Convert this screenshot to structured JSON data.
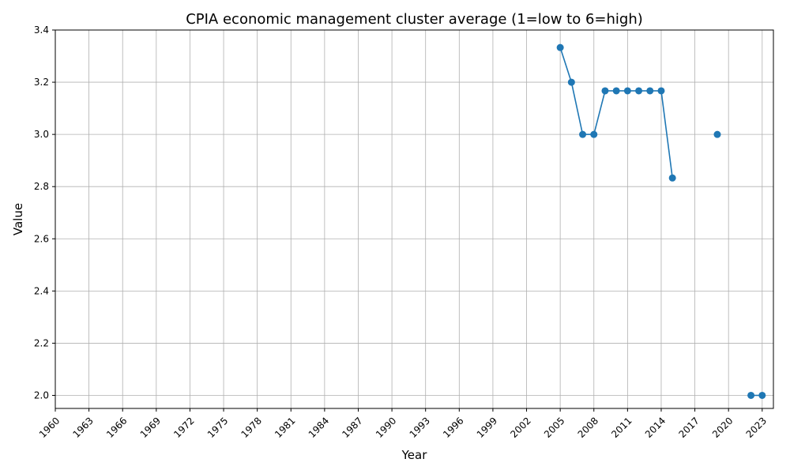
{
  "chart_data": {
    "type": "line",
    "title": "CPIA economic management cluster average (1=low to 6=high)",
    "xlabel": "Year",
    "ylabel": "Value",
    "xlim": [
      1960,
      2024
    ],
    "ylim": [
      1.95,
      3.4
    ],
    "x_ticks": [
      1960,
      1963,
      1966,
      1969,
      1972,
      1975,
      1978,
      1981,
      1984,
      1987,
      1990,
      1993,
      1996,
      1999,
      2002,
      2005,
      2008,
      2011,
      2014,
      2017,
      2020,
      2023
    ],
    "y_ticks": [
      2.0,
      2.2,
      2.4,
      2.6,
      2.8,
      3.0,
      3.2,
      3.4
    ],
    "grid": true,
    "series": [
      {
        "color": "#1f77b4",
        "marker": "circle",
        "points": [
          {
            "x": 2005,
            "y": 3.333
          },
          {
            "x": 2006,
            "y": 3.2
          },
          {
            "x": 2007,
            "y": 3.0
          },
          {
            "x": 2008,
            "y": 3.0
          },
          {
            "x": 2009,
            "y": 3.167
          },
          {
            "x": 2010,
            "y": 3.167
          },
          {
            "x": 2011,
            "y": 3.167
          },
          {
            "x": 2012,
            "y": 3.167
          },
          {
            "x": 2013,
            "y": 3.167
          },
          {
            "x": 2014,
            "y": 3.167
          },
          {
            "x": 2015,
            "y": 2.833
          },
          {
            "x": 2019,
            "y": 3.0
          },
          {
            "x": 2022,
            "y": 2.0
          },
          {
            "x": 2023,
            "y": 2.0
          }
        ]
      }
    ]
  }
}
